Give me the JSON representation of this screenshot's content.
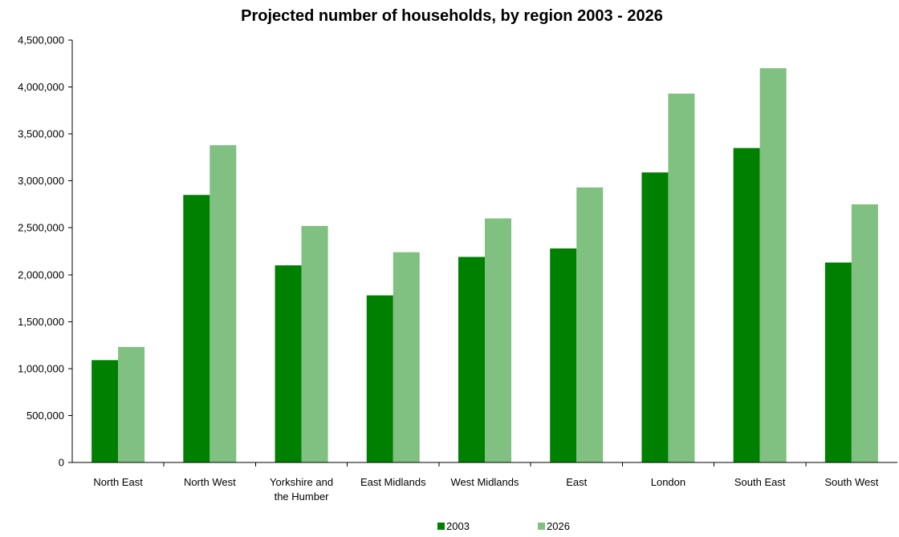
{
  "chart_data": {
    "type": "bar",
    "title": "Projected number of households, by region 2003 - 2026",
    "xlabel": "",
    "ylabel": "",
    "categories": [
      [
        "North East"
      ],
      [
        "North West"
      ],
      [
        "Yorkshire and",
        "the Humber"
      ],
      [
        "East Midlands"
      ],
      [
        "West Midlands"
      ],
      [
        "East"
      ],
      [
        "London"
      ],
      [
        "South East"
      ],
      [
        "South West"
      ]
    ],
    "series": [
      {
        "name": "2003",
        "color": "#008000",
        "values": [
          1090000,
          2850000,
          2100000,
          1780000,
          2190000,
          2280000,
          3090000,
          3350000,
          2130000
        ]
      },
      {
        "name": "2026",
        "color": "#80c080",
        "values": [
          1230000,
          3380000,
          2520000,
          2240000,
          2600000,
          2930000,
          3930000,
          4200000,
          2750000
        ]
      }
    ],
    "ylim": [
      0,
      4500000
    ],
    "yticks": [
      "0",
      "500,000",
      "1,000,000",
      "1,500,000",
      "2,000,000",
      "2,500,000",
      "3,000,000",
      "3,500,000",
      "4,000,000",
      "4,500,000"
    ],
    "ytick_values": [
      0,
      500000,
      1000000,
      1500000,
      2000000,
      2500000,
      3000000,
      3500000,
      4000000,
      4500000
    ],
    "grid": false,
    "legend_position": "bottom"
  }
}
